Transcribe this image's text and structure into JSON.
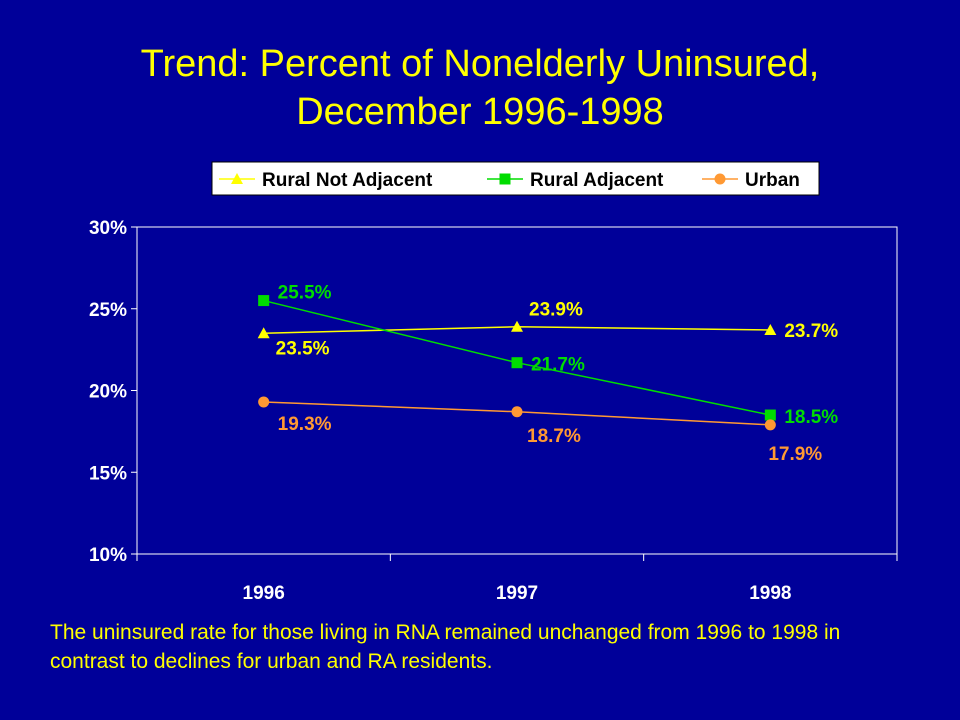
{
  "title_line1": "Trend: Percent of Nonelderly Uninsured,",
  "title_line2": "December 1996-1998",
  "caption": "The uninsured rate for those living in RNA remained unchanged from 1996 to 1998 in contrast to declines for urban and RA residents.",
  "chart_data": {
    "type": "line",
    "categories": [
      "1996",
      "1997",
      "1998"
    ],
    "ylim": [
      0.1,
      0.3
    ],
    "y_ticks": [
      {
        "value": 0.1,
        "label": "10%"
      },
      {
        "value": 0.15,
        "label": "15%"
      },
      {
        "value": 0.2,
        "label": "20%"
      },
      {
        "value": 0.25,
        "label": "25%"
      },
      {
        "value": 0.3,
        "label": "30%"
      }
    ],
    "grid": false,
    "legend_position": "top",
    "series": [
      {
        "name": "Rural Not Adjacent",
        "color": "#ffff00",
        "marker": "triangle",
        "values": [
          0.235,
          0.239,
          0.237
        ],
        "labels": [
          "23.5%",
          "23.9%",
          "23.7%"
        ]
      },
      {
        "name": "Rural Adjacent",
        "color": "#00dd00",
        "marker": "square",
        "values": [
          0.255,
          0.217,
          0.185
        ],
        "labels": [
          "25.5%",
          "21.7%",
          "18.5%"
        ]
      },
      {
        "name": "Urban",
        "color": "#ff9933",
        "marker": "circle",
        "values": [
          0.193,
          0.187,
          0.179
        ],
        "labels": [
          "19.3%",
          "18.7%",
          "17.9%"
        ]
      }
    ]
  }
}
